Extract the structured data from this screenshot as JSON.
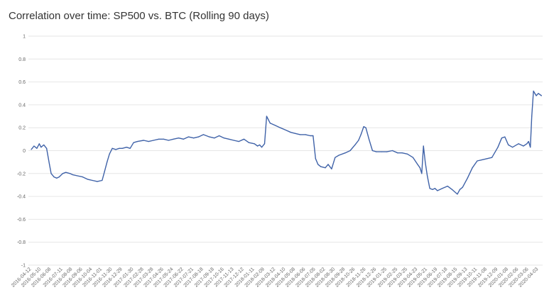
{
  "chart_data": {
    "type": "line",
    "title": "Correlation over time: SP500 vs. BTC (Rolling 90 days)",
    "xlabel": "",
    "ylabel": "",
    "ylim": [
      -1,
      1
    ],
    "grid": true,
    "legend": "none",
    "y_ticks": [
      "1",
      "0.8",
      "0.6",
      "0.4",
      "0.2",
      "0",
      "-0.2",
      "-0.4",
      "-0.6",
      "-0.8",
      "-1"
    ],
    "x_ticks": [
      "2016-04-12",
      "2016-05-10",
      "2016-06-08",
      "2016-07-11",
      "2016-08-08",
      "2016-09-06",
      "2016-10-04",
      "2016-11-01",
      "2016-11-30",
      "2016-12-29",
      "2017-01-30",
      "2017-02-28",
      "2017-03-28",
      "2017-04-26",
      "2017-05-24",
      "2017-06-22",
      "2017-07-21",
      "2017-08-18",
      "2017-09-18",
      "2017-10-16",
      "2017-11-13",
      "2017-12-12",
      "2018-01-11",
      "2018-02-09",
      "2018-03-12",
      "2018-04-10",
      "2018-05-08",
      "2018-06-06",
      "2018-07-05",
      "2018-08-02",
      "2018-08-30",
      "2018-09-28",
      "2018-10-26",
      "2018-11-26",
      "2018-12-26",
      "2019-01-25",
      "2019-02-25",
      "2019-03-25",
      "2019-04-23",
      "2019-05-21",
      "2019-06-19",
      "2019-07-18",
      "2019-08-15",
      "2019-09-13",
      "2019-10-11",
      "2019-11-08",
      "2019-12-09",
      "2020-01-08",
      "2020-02-06",
      "2020-03-06",
      "2020-04-03"
    ],
    "series": [
      {
        "color": "#3f62a8",
        "x": [
          "2016-04-12",
          "2016-04-20",
          "2016-04-28",
          "2016-05-05",
          "2016-05-10",
          "2016-05-18",
          "2016-05-26",
          "2016-06-03",
          "2016-06-08",
          "2016-06-16",
          "2016-06-24",
          "2016-07-01",
          "2016-07-11",
          "2016-07-20",
          "2016-08-01",
          "2016-08-08",
          "2016-08-22",
          "2016-09-06",
          "2016-09-20",
          "2016-10-04",
          "2016-10-18",
          "2016-11-01",
          "2016-11-08",
          "2016-11-15",
          "2016-11-22",
          "2016-11-30",
          "2016-12-10",
          "2016-12-20",
          "2016-12-29",
          "2017-01-10",
          "2017-01-20",
          "2017-01-30",
          "2017-02-10",
          "2017-02-28",
          "2017-03-14",
          "2017-03-28",
          "2017-04-12",
          "2017-04-26",
          "2017-05-10",
          "2017-05-24",
          "2017-06-08",
          "2017-06-22",
          "2017-07-06",
          "2017-07-21",
          "2017-08-04",
          "2017-08-18",
          "2017-09-04",
          "2017-09-18",
          "2017-10-02",
          "2017-10-16",
          "2017-10-30",
          "2017-11-13",
          "2017-11-27",
          "2017-12-12",
          "2017-12-26",
          "2018-01-11",
          "2018-01-20",
          "2018-01-26",
          "2018-02-01",
          "2018-02-09",
          "2018-02-15",
          "2018-02-25",
          "2018-03-12",
          "2018-03-26",
          "2018-04-10",
          "2018-04-25",
          "2018-05-08",
          "2018-05-22",
          "2018-06-06",
          "2018-06-20",
          "2018-06-28",
          "2018-07-05",
          "2018-07-12",
          "2018-07-20",
          "2018-08-02",
          "2018-08-10",
          "2018-08-20",
          "2018-08-30",
          "2018-09-10",
          "2018-09-28",
          "2018-10-12",
          "2018-10-26",
          "2018-11-05",
          "2018-11-12",
          "2018-11-20",
          "2018-11-26",
          "2018-12-05",
          "2018-12-15",
          "2018-12-26",
          "2019-01-10",
          "2019-01-25",
          "2019-02-10",
          "2019-02-25",
          "2019-03-10",
          "2019-03-25",
          "2019-04-10",
          "2019-04-23",
          "2019-04-30",
          "2019-05-05",
          "2019-05-10",
          "2019-05-15",
          "2019-05-21",
          "2019-05-28",
          "2019-06-05",
          "2019-06-12",
          "2019-06-19",
          "2019-07-03",
          "2019-07-18",
          "2019-07-31",
          "2019-08-15",
          "2019-08-22",
          "2019-08-30",
          "2019-09-13",
          "2019-09-27",
          "2019-10-11",
          "2019-10-25",
          "2019-11-08",
          "2019-11-22",
          "2019-12-09",
          "2019-12-20",
          "2019-12-29",
          "2020-01-08",
          "2020-01-20",
          "2020-02-06",
          "2020-02-20",
          "2020-03-01",
          "2020-03-06",
          "2020-03-11",
          "2020-03-15",
          "2020-03-20",
          "2020-03-28",
          "2020-04-03",
          "2020-04-12"
        ],
        "y": [
          0.01,
          0.04,
          0.02,
          0.06,
          0.03,
          0.05,
          0.02,
          -0.12,
          -0.2,
          -0.23,
          -0.24,
          -0.23,
          -0.2,
          -0.19,
          -0.2,
          -0.21,
          -0.22,
          -0.23,
          -0.25,
          -0.26,
          -0.27,
          -0.26,
          -0.18,
          -0.1,
          -0.03,
          0.02,
          0.01,
          0.02,
          0.02,
          0.03,
          0.02,
          0.07,
          0.08,
          0.09,
          0.08,
          0.09,
          0.1,
          0.1,
          0.09,
          0.1,
          0.11,
          0.1,
          0.12,
          0.11,
          0.12,
          0.14,
          0.12,
          0.11,
          0.13,
          0.11,
          0.1,
          0.09,
          0.08,
          0.1,
          0.07,
          0.06,
          0.04,
          0.05,
          0.03,
          0.06,
          0.3,
          0.24,
          0.22,
          0.2,
          0.18,
          0.16,
          0.15,
          0.14,
          0.14,
          0.13,
          0.13,
          -0.07,
          -0.12,
          -0.14,
          -0.15,
          -0.12,
          -0.16,
          -0.06,
          -0.04,
          -0.02,
          0.0,
          0.05,
          0.09,
          0.14,
          0.21,
          0.2,
          0.1,
          0.0,
          -0.01,
          -0.01,
          -0.01,
          0.0,
          -0.02,
          -0.02,
          -0.03,
          -0.06,
          -0.12,
          -0.15,
          -0.2,
          0.04,
          -0.1,
          -0.22,
          -0.33,
          -0.34,
          -0.33,
          -0.35,
          -0.33,
          -0.31,
          -0.34,
          -0.38,
          -0.34,
          -0.32,
          -0.24,
          -0.15,
          -0.09,
          -0.08,
          -0.07,
          -0.06,
          0.03,
          0.11,
          0.12,
          0.05,
          0.03,
          0.06,
          0.04,
          0.06,
          0.08,
          0.03,
          0.3,
          0.52,
          0.48,
          0.5,
          0.48
        ]
      }
    ]
  }
}
